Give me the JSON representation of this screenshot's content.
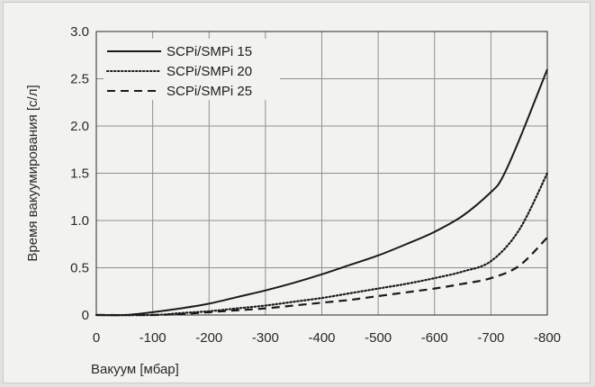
{
  "chart_data": {
    "type": "line",
    "title": "",
    "xlabel": "Вакуум [мбар]",
    "ylabel": "Время вакуумирования [с/л]",
    "xlim": [
      0,
      -800
    ],
    "ylim": [
      0,
      3.0
    ],
    "x_ticks": [
      "0",
      "-100",
      "-200",
      "-300",
      "-400",
      "-500",
      "-600",
      "-700",
      "-800"
    ],
    "y_ticks": [
      "0",
      "0.5",
      "1.0",
      "1.5",
      "2.0",
      "2.5",
      "3.0"
    ],
    "grid": true,
    "legend_position": "top-left",
    "series": [
      {
        "name": "SCPi/SMPi 15",
        "style": "solid",
        "color": "#1a1a1a",
        "x": [
          0,
          -50,
          -100,
          -150,
          -200,
          -250,
          -300,
          -350,
          -400,
          -450,
          -500,
          -550,
          -600,
          -650,
          -700,
          -720,
          -750,
          -800
        ],
        "y": [
          0,
          0.0,
          0.03,
          0.07,
          0.12,
          0.19,
          0.26,
          0.34,
          0.43,
          0.53,
          0.63,
          0.75,
          0.88,
          1.05,
          1.3,
          1.45,
          1.85,
          2.6
        ]
      },
      {
        "name": "SCPi/SMPi 20",
        "style": "dotted",
        "color": "#1a1a1a",
        "x": [
          0,
          -100,
          -150,
          -200,
          -250,
          -300,
          -350,
          -400,
          -450,
          -500,
          -550,
          -600,
          -650,
          -700,
          -750,
          -800
        ],
        "y": [
          0,
          0.0,
          0.02,
          0.04,
          0.07,
          0.1,
          0.14,
          0.18,
          0.23,
          0.28,
          0.33,
          0.39,
          0.46,
          0.57,
          0.9,
          1.5
        ]
      },
      {
        "name": "SCPi/SMPi 25",
        "style": "dashed",
        "color": "#1a1a1a",
        "x": [
          0,
          -100,
          -150,
          -200,
          -250,
          -300,
          -350,
          -400,
          -450,
          -500,
          -550,
          -600,
          -650,
          -700,
          -750,
          -800
        ],
        "y": [
          0,
          0.0,
          0.01,
          0.03,
          0.05,
          0.07,
          0.1,
          0.13,
          0.16,
          0.2,
          0.24,
          0.28,
          0.33,
          0.39,
          0.52,
          0.82
        ]
      }
    ]
  }
}
